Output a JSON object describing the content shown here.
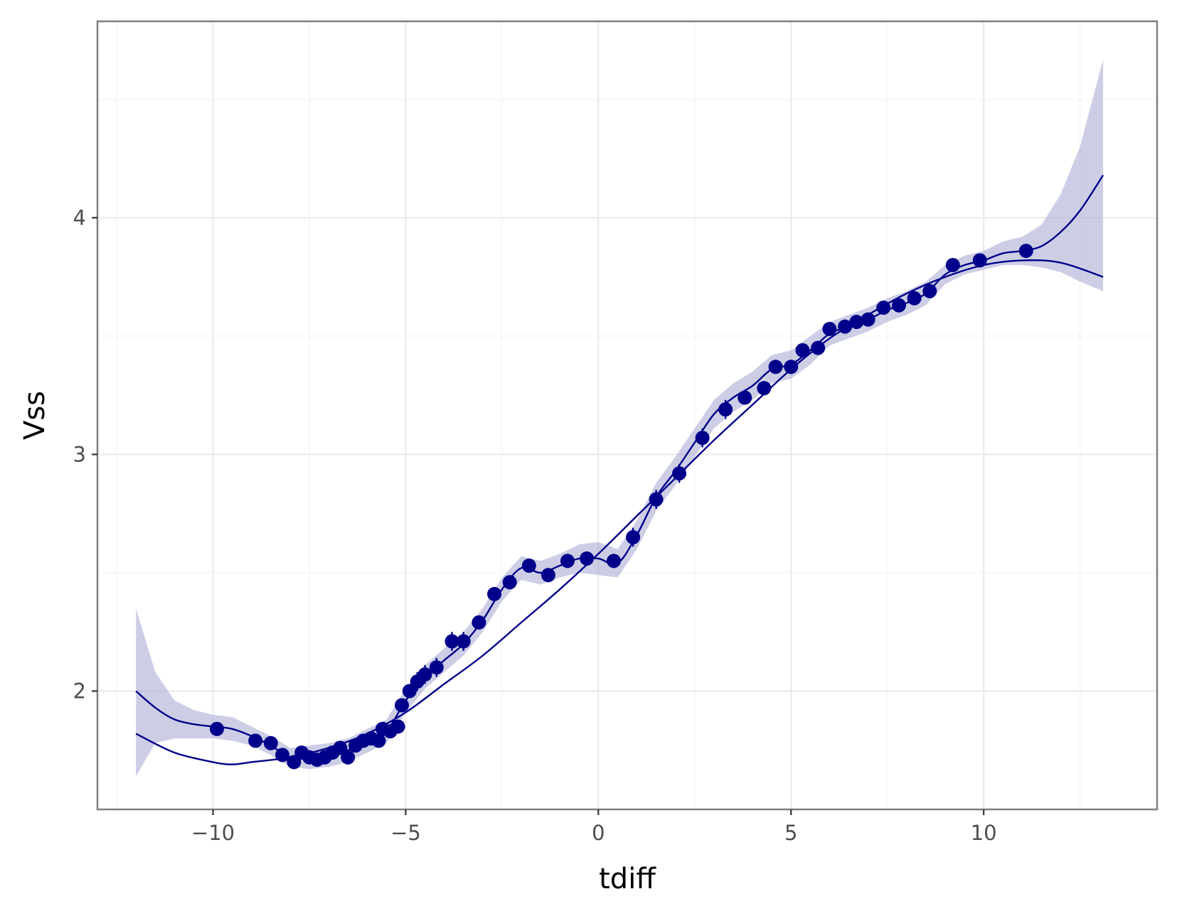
{
  "chart_data": {
    "type": "scatter",
    "title": "",
    "xlabel": "tdiff",
    "ylabel": "Vss",
    "xlim": [
      -13.0,
      14.5
    ],
    "ylim": [
      1.5,
      4.83
    ],
    "x_ticks": [
      -10,
      -5,
      0,
      5,
      10
    ],
    "x_tick_labels": [
      "−10",
      "−5",
      "0",
      "5",
      "10"
    ],
    "y_ticks": [
      2,
      3,
      4
    ],
    "y_tick_labels": [
      "2",
      "3",
      "4"
    ],
    "grid": true,
    "legend": "none",
    "colors": {
      "points": "#00008b",
      "lines": "#00008b",
      "ribbon": "#a4a6d2",
      "grid_major": "#ebebeb",
      "grid_minor": "#f5f5f5",
      "panel_border": "#7f7f7f"
    },
    "points": [
      {
        "x": -9.9,
        "y": 1.84,
        "err": 0.02
      },
      {
        "x": -8.9,
        "y": 1.79,
        "err": 0.02
      },
      {
        "x": -8.5,
        "y": 1.78,
        "err": 0.02
      },
      {
        "x": -8.2,
        "y": 1.73,
        "err": 0.02
      },
      {
        "x": -7.9,
        "y": 1.7,
        "err": 0.02
      },
      {
        "x": -7.7,
        "y": 1.74,
        "err": 0.02
      },
      {
        "x": -7.5,
        "y": 1.72,
        "err": 0.03
      },
      {
        "x": -7.3,
        "y": 1.71,
        "err": 0.03
      },
      {
        "x": -7.1,
        "y": 1.72,
        "err": 0.03
      },
      {
        "x": -6.9,
        "y": 1.74,
        "err": 0.02
      },
      {
        "x": -6.7,
        "y": 1.76,
        "err": 0.02
      },
      {
        "x": -6.5,
        "y": 1.72,
        "err": 0.03
      },
      {
        "x": -6.3,
        "y": 1.77,
        "err": 0.02
      },
      {
        "x": -6.1,
        "y": 1.79,
        "err": 0.02
      },
      {
        "x": -5.9,
        "y": 1.8,
        "err": 0.02
      },
      {
        "x": -5.7,
        "y": 1.79,
        "err": 0.02
      },
      {
        "x": -5.6,
        "y": 1.84,
        "err": 0.02
      },
      {
        "x": -5.4,
        "y": 1.83,
        "err": 0.02
      },
      {
        "x": -5.2,
        "y": 1.85,
        "err": 0.02
      },
      {
        "x": -5.1,
        "y": 1.94,
        "err": 0.02
      },
      {
        "x": -4.9,
        "y": 2.0,
        "err": 0.03
      },
      {
        "x": -4.7,
        "y": 2.04,
        "err": 0.04
      },
      {
        "x": -4.5,
        "y": 2.07,
        "err": 0.04
      },
      {
        "x": -4.2,
        "y": 2.1,
        "err": 0.04
      },
      {
        "x": -3.8,
        "y": 2.21,
        "err": 0.04
      },
      {
        "x": -3.5,
        "y": 2.21,
        "err": 0.04
      },
      {
        "x": -3.1,
        "y": 2.29,
        "err": 0.03
      },
      {
        "x": -2.7,
        "y": 2.41,
        "err": 0.03
      },
      {
        "x": -2.3,
        "y": 2.46,
        "err": 0.03
      },
      {
        "x": -1.8,
        "y": 2.53,
        "err": 0.03
      },
      {
        "x": -1.3,
        "y": 2.49,
        "err": 0.03
      },
      {
        "x": -0.8,
        "y": 2.55,
        "err": 0.03
      },
      {
        "x": -0.3,
        "y": 2.56,
        "err": 0.03
      },
      {
        "x": 0.4,
        "y": 2.55,
        "err": 0.03
      },
      {
        "x": 0.9,
        "y": 2.65,
        "err": 0.04
      },
      {
        "x": 1.5,
        "y": 2.81,
        "err": 0.04
      },
      {
        "x": 2.1,
        "y": 2.92,
        "err": 0.04
      },
      {
        "x": 2.7,
        "y": 3.07,
        "err": 0.04
      },
      {
        "x": 3.3,
        "y": 3.19,
        "err": 0.04
      },
      {
        "x": 3.8,
        "y": 3.24,
        "err": 0.03
      },
      {
        "x": 4.3,
        "y": 3.28,
        "err": 0.03
      },
      {
        "x": 4.6,
        "y": 3.37,
        "err": 0.03
      },
      {
        "x": 5.0,
        "y": 3.37,
        "err": 0.03
      },
      {
        "x": 5.3,
        "y": 3.44,
        "err": 0.03
      },
      {
        "x": 5.7,
        "y": 3.45,
        "err": 0.03
      },
      {
        "x": 6.0,
        "y": 3.53,
        "err": 0.03
      },
      {
        "x": 6.4,
        "y": 3.54,
        "err": 0.03
      },
      {
        "x": 6.7,
        "y": 3.56,
        "err": 0.03
      },
      {
        "x": 7.0,
        "y": 3.57,
        "err": 0.03
      },
      {
        "x": 7.4,
        "y": 3.62,
        "err": 0.03
      },
      {
        "x": 7.8,
        "y": 3.63,
        "err": 0.03
      },
      {
        "x": 8.2,
        "y": 3.66,
        "err": 0.03
      },
      {
        "x": 8.6,
        "y": 3.69,
        "err": 0.02
      },
      {
        "x": 9.2,
        "y": 3.8,
        "err": 0.02
      },
      {
        "x": 9.9,
        "y": 3.82,
        "err": 0.02
      },
      {
        "x": 11.1,
        "y": 3.86,
        "err": 0.03
      }
    ],
    "poly_fit": {
      "x": [
        -12,
        -11,
        -10,
        -9.5,
        -9,
        -8,
        -7,
        -6,
        -5,
        -4,
        -3,
        -2,
        -1,
        0,
        1,
        2,
        3,
        4,
        5,
        6,
        7,
        8,
        9,
        10,
        11,
        12,
        13.1
      ],
      "y": [
        1.82,
        1.74,
        1.7,
        1.69,
        1.7,
        1.72,
        1.76,
        1.82,
        1.91,
        2.03,
        2.15,
        2.29,
        2.43,
        2.58,
        2.74,
        2.9,
        3.06,
        3.21,
        3.36,
        3.49,
        3.59,
        3.68,
        3.75,
        3.8,
        3.82,
        3.81,
        3.75
      ]
    },
    "loess_fit": {
      "x": [
        -12,
        -11.5,
        -11,
        -10.5,
        -10,
        -9.5,
        -9,
        -8.5,
        -8,
        -7.5,
        -7,
        -6.5,
        -6,
        -5.5,
        -5,
        -4.5,
        -4,
        -3.5,
        -3,
        -2.5,
        -2,
        -1.5,
        -1,
        -0.5,
        0,
        0.5,
        1,
        1.5,
        2,
        2.5,
        3,
        3.5,
        4,
        4.5,
        5,
        5.5,
        6,
        6.5,
        7,
        7.5,
        8,
        8.5,
        9,
        9.5,
        10,
        10.5,
        11,
        11.5,
        12,
        12.5,
        13.1
      ],
      "y": [
        2.0,
        1.93,
        1.88,
        1.86,
        1.85,
        1.84,
        1.81,
        1.77,
        1.72,
        1.72,
        1.73,
        1.75,
        1.79,
        1.83,
        1.96,
        2.06,
        2.13,
        2.2,
        2.3,
        2.43,
        2.52,
        2.5,
        2.53,
        2.56,
        2.56,
        2.54,
        2.66,
        2.82,
        2.93,
        3.05,
        3.17,
        3.24,
        3.29,
        3.36,
        3.38,
        3.44,
        3.51,
        3.54,
        3.57,
        3.61,
        3.64,
        3.68,
        3.76,
        3.8,
        3.82,
        3.85,
        3.86,
        3.88,
        3.94,
        4.03,
        4.18
      ]
    },
    "loess_band": {
      "x": [
        -12,
        -11.5,
        -11,
        -10.5,
        -10,
        -9.5,
        -9,
        -8.5,
        -8,
        -7.5,
        -7,
        -6.5,
        -6,
        -5.5,
        -5,
        -4.5,
        -4,
        -3.5,
        -3,
        -2.5,
        -2,
        -1.5,
        -1,
        -0.5,
        0,
        0.5,
        1,
        1.5,
        2,
        2.5,
        3,
        3.5,
        4,
        4.5,
        5,
        5.5,
        6,
        6.5,
        7,
        7.5,
        8,
        8.5,
        9,
        9.5,
        10,
        10.5,
        11,
        11.5,
        12,
        12.5,
        13.1
      ],
      "ymin": [
        1.64,
        1.78,
        1.8,
        1.8,
        1.8,
        1.79,
        1.77,
        1.73,
        1.68,
        1.67,
        1.68,
        1.7,
        1.74,
        1.78,
        1.91,
        2.01,
        2.08,
        2.15,
        2.25,
        2.38,
        2.47,
        2.45,
        2.48,
        2.5,
        2.49,
        2.48,
        2.6,
        2.76,
        2.87,
        2.99,
        3.11,
        3.18,
        3.23,
        3.3,
        3.32,
        3.38,
        3.46,
        3.49,
        3.52,
        3.56,
        3.59,
        3.63,
        3.72,
        3.76,
        3.78,
        3.8,
        3.8,
        3.79,
        3.77,
        3.73,
        3.69
      ],
      "ymax": [
        2.35,
        2.08,
        1.96,
        1.92,
        1.9,
        1.89,
        1.85,
        1.81,
        1.76,
        1.77,
        1.78,
        1.8,
        1.84,
        1.88,
        2.01,
        2.11,
        2.18,
        2.25,
        2.35,
        2.48,
        2.57,
        2.55,
        2.58,
        2.62,
        2.63,
        2.6,
        2.72,
        2.88,
        2.99,
        3.11,
        3.23,
        3.3,
        3.35,
        3.42,
        3.44,
        3.5,
        3.56,
        3.59,
        3.62,
        3.66,
        3.69,
        3.73,
        3.8,
        3.84,
        3.86,
        3.9,
        3.92,
        3.97,
        4.1,
        4.3,
        4.67
      ]
    }
  }
}
